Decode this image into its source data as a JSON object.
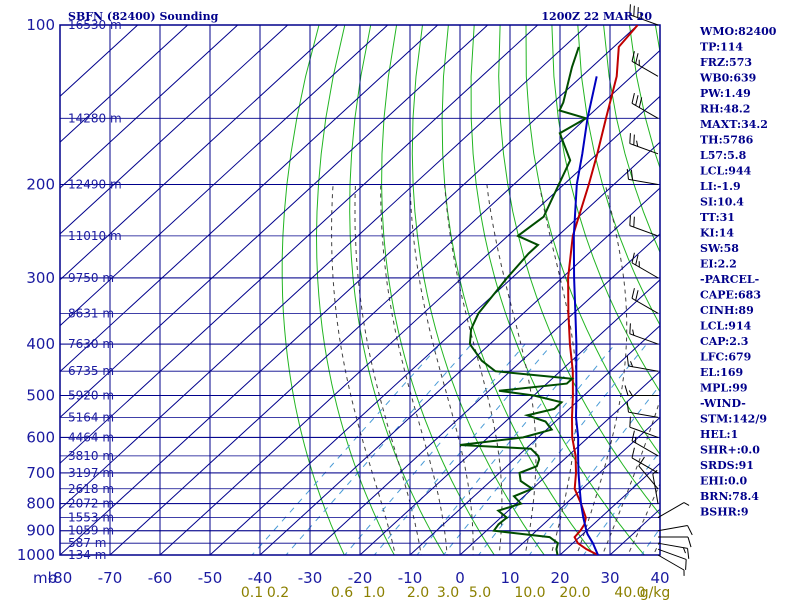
{
  "header": {
    "station": "SBFN (82400) Sounding",
    "time": "1200Z 22 MAR 20"
  },
  "colors": {
    "grid": "#00008b",
    "isotherm": "#00008b",
    "dry_adiabat": "#22b522",
    "moist_adiabat": "#404040",
    "mixing_ratio": "#4a9bd6",
    "temperature": "#c00000",
    "dewpoint": "#004d00",
    "parcel": "#0000c0",
    "mix_label": "#8b8000",
    "index_text": "#00008b"
  },
  "chart_data": {
    "type": "line",
    "title": "SBFN (82400) Sounding",
    "pressure_unit": "mb",
    "pressure_levels": [
      100,
      200,
      300,
      400,
      500,
      600,
      700,
      800,
      900,
      1000
    ],
    "pressure_labels": [
      "100",
      "200",
      "300",
      "400",
      "500",
      "600",
      "700",
      "800",
      "900",
      "1000"
    ],
    "temperature_ticks": [
      -80,
      -70,
      -60,
      -50,
      -40,
      -30,
      -20,
      -10,
      0,
      10,
      20,
      30,
      40
    ],
    "temperature_tick_labels": [
      "-80",
      "-70",
      "-60",
      "-50",
      "-40",
      "-30",
      "-20",
      "-10",
      "0",
      "10",
      "20",
      "30",
      "40"
    ],
    "xlim": [
      -80,
      40
    ],
    "height_markers": [
      {
        "p": 100,
        "label": "16530 m"
      },
      {
        "p": 150,
        "label": "14280 m"
      },
      {
        "p": 200,
        "label": "12490 m"
      },
      {
        "p": 250,
        "label": "11010 m"
      },
      {
        "p": 300,
        "label": "9750 m"
      },
      {
        "p": 350,
        "label": "8631 m"
      },
      {
        "p": 400,
        "label": "7630 m"
      },
      {
        "p": 450,
        "label": "6735 m"
      },
      {
        "p": 500,
        "label": "5920 m"
      },
      {
        "p": 550,
        "label": "5164 m"
      },
      {
        "p": 600,
        "label": "4464 m"
      },
      {
        "p": 650,
        "label": "3810 m"
      },
      {
        "p": 700,
        "label": "3197 m"
      },
      {
        "p": 750,
        "label": "2618 m"
      },
      {
        "p": 800,
        "label": "2072 m"
      },
      {
        "p": 850,
        "label": "1553 m"
      },
      {
        "p": 900,
        "label": "1059 m"
      },
      {
        "p": 950,
        "label": "587 m"
      },
      {
        "p": 1000,
        "label": "134 m"
      }
    ],
    "mixing_ratio_labels": [
      "0.1",
      "0.2",
      "0.6",
      "1.0",
      "2.0",
      "3.0",
      "5.0",
      "10.0",
      "20.0",
      "40.0",
      "g/kg"
    ],
    "mixing_ratio_values": [
      0.1,
      0.2,
      0.6,
      1.0,
      2.0,
      3.0,
      5.0,
      10.0,
      20.0,
      40.0
    ],
    "series": [
      {
        "name": "temperature",
        "points": [
          [
            1000,
            27.6
          ],
          [
            975,
            24
          ],
          [
            950,
            21
          ],
          [
            925,
            19
          ],
          [
            900,
            18.8
          ],
          [
            875,
            18.2
          ],
          [
            850,
            17
          ],
          [
            800,
            13
          ],
          [
            750,
            8.5
          ],
          [
            700,
            5.3
          ],
          [
            650,
            1.5
          ],
          [
            600,
            -3.2
          ],
          [
            550,
            -7.6
          ],
          [
            500,
            -12.2
          ],
          [
            450,
            -17.5
          ],
          [
            400,
            -24
          ],
          [
            350,
            -31
          ],
          [
            300,
            -38.8
          ],
          [
            250,
            -47
          ],
          [
            200,
            -55
          ],
          [
            175,
            -60
          ],
          [
            150,
            -66
          ],
          [
            125,
            -73
          ],
          [
            110,
            -79
          ],
          [
            100,
            -80
          ]
        ]
      },
      {
        "name": "dewpoint",
        "points": [
          [
            1000,
            19.5
          ],
          [
            975,
            18
          ],
          [
            950,
            17
          ],
          [
            925,
            14
          ],
          [
            900,
            1.5
          ],
          [
            875,
            1
          ],
          [
            850,
            1.2
          ],
          [
            825,
            -2
          ],
          [
            800,
            1
          ],
          [
            775,
            -2
          ],
          [
            750,
            0
          ],
          [
            725,
            -4
          ],
          [
            700,
            -6
          ],
          [
            680,
            -4
          ],
          [
            660,
            -5
          ],
          [
            650,
            -6
          ],
          [
            630,
            -9
          ],
          [
            620,
            -24
          ],
          [
            600,
            -13
          ],
          [
            580,
            -9
          ],
          [
            560,
            -12
          ],
          [
            545,
            -17
          ],
          [
            530,
            -13
          ],
          [
            515,
            -13
          ],
          [
            500,
            -20
          ],
          [
            490,
            -28
          ],
          [
            475,
            -16
          ],
          [
            465,
            -16
          ],
          [
            450,
            -33
          ],
          [
            430,
            -38
          ],
          [
            400,
            -44
          ],
          [
            375,
            -47
          ],
          [
            350,
            -49
          ],
          [
            300,
            -51
          ],
          [
            270,
            -52
          ],
          [
            260,
            -52
          ],
          [
            250,
            -58
          ],
          [
            230,
            -57
          ],
          [
            200,
            -61
          ],
          [
            180,
            -64
          ],
          [
            160,
            -72
          ],
          [
            150,
            -70
          ],
          [
            145,
            -77
          ],
          [
            140,
            -78
          ],
          [
            120,
            -84
          ],
          [
            110,
            -87
          ]
        ]
      },
      {
        "name": "parcel",
        "points": [
          [
            1000,
            27.6
          ],
          [
            950,
            24
          ],
          [
            914,
            21
          ],
          [
            900,
            20
          ],
          [
            850,
            16.5
          ],
          [
            800,
            13
          ],
          [
            750,
            9.5
          ],
          [
            700,
            5.8
          ],
          [
            650,
            2
          ],
          [
            600,
            -2
          ],
          [
            550,
            -6.8
          ],
          [
            500,
            -11.5
          ],
          [
            450,
            -16.8
          ],
          [
            400,
            -22.7
          ],
          [
            350,
            -29.6
          ],
          [
            300,
            -37.6
          ],
          [
            250,
            -46.8
          ],
          [
            200,
            -57.4
          ],
          [
            175,
            -63
          ],
          [
            150,
            -69.7
          ],
          [
            125,
            -77
          ]
        ]
      }
    ]
  },
  "indices": {
    "lines": [
      "WMO:82400",
      "TP:114",
      "FRZ:573",
      "WB0:639",
      "PW:1.49",
      "RH:48.2",
      "MAXT:34.2",
      "TH:5786",
      "L57:5.8",
      "LCL:944",
      "LI:-1.9",
      "SI:10.4",
      "TT:31",
      "KI:14",
      "SW:58",
      "EI:2.2",
      "-PARCEL-",
      "CAPE:683",
      "CINH:89",
      "LCL:914",
      "CAP:2.3",
      "LFC:679",
      "EL:169",
      "MPL:99",
      "-WIND-",
      "STM:142/9",
      "HEL:1",
      "SHR+:0.0",
      "SRDS:91",
      "EHI:0.0",
      "BRN:78.4",
      "BSHR:9"
    ]
  },
  "wind": {
    "levels": [
      {
        "p": 1000,
        "dir": 120,
        "spd": 5
      },
      {
        "p": 975,
        "dir": 110,
        "spd": 10
      },
      {
        "p": 950,
        "dir": 100,
        "spd": 15
      },
      {
        "p": 925,
        "dir": 90,
        "spd": 10
      },
      {
        "p": 900,
        "dir": 80,
        "spd": 10
      },
      {
        "p": 850,
        "dir": 60,
        "spd": 5
      },
      {
        "p": 800,
        "dir": 350,
        "spd": 5
      },
      {
        "p": 750,
        "dir": 320,
        "spd": 10
      },
      {
        "p": 700,
        "dir": 300,
        "spd": 10
      },
      {
        "p": 650,
        "dir": 300,
        "spd": 15
      },
      {
        "p": 600,
        "dir": 290,
        "spd": 10
      },
      {
        "p": 550,
        "dir": 280,
        "spd": 10
      },
      {
        "p": 500,
        "dir": 270,
        "spd": 15
      },
      {
        "p": 450,
        "dir": 280,
        "spd": 15
      },
      {
        "p": 400,
        "dir": 290,
        "spd": 15
      },
      {
        "p": 350,
        "dir": 300,
        "spd": 20
      },
      {
        "p": 300,
        "dir": 300,
        "spd": 25
      },
      {
        "p": 250,
        "dir": 290,
        "spd": 20
      },
      {
        "p": 200,
        "dir": 280,
        "spd": 20
      },
      {
        "p": 175,
        "dir": 290,
        "spd": 25
      },
      {
        "p": 150,
        "dir": 300,
        "spd": 30
      },
      {
        "p": 125,
        "dir": 300,
        "spd": 25
      },
      {
        "p": 100,
        "dir": 290,
        "spd": 35
      }
    ]
  }
}
